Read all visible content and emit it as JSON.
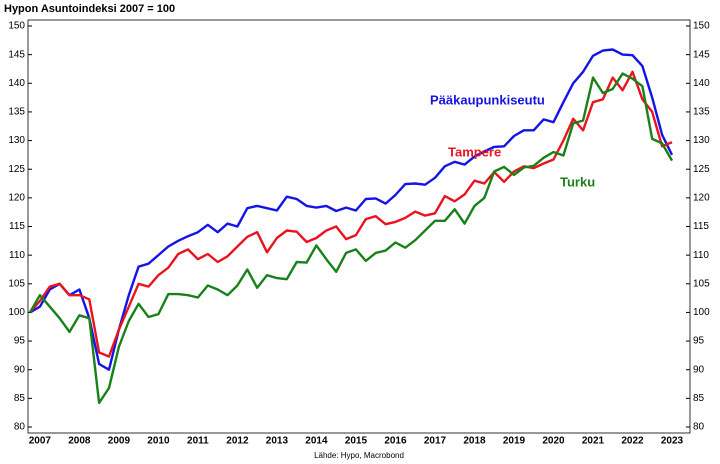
{
  "chart_data": {
    "type": "line",
    "title": "Hypon Asuntoindeksi 2007 = 100",
    "source": "Lähde: Hypo, Macrobond",
    "categories": [
      null,
      "2007",
      null,
      null,
      null,
      "2008",
      null,
      null,
      null,
      "2009",
      null,
      null,
      null,
      "2010",
      null,
      null,
      null,
      "2011",
      null,
      null,
      null,
      "2012",
      null,
      null,
      null,
      "2013",
      null,
      null,
      null,
      "2014",
      null,
      null,
      null,
      "2015",
      null,
      null,
      null,
      "2016",
      null,
      null,
      null,
      "2017",
      null,
      null,
      null,
      "2018",
      null,
      null,
      null,
      "2019",
      null,
      null,
      null,
      "2020",
      null,
      null,
      null,
      "2021",
      null,
      null,
      null,
      "2022",
      null,
      null,
      null,
      "2023"
    ],
    "series": [
      {
        "name": "Pääkaupunkiseutu",
        "color": "#1414e6",
        "values": [
          100,
          101,
          104,
          105,
          103,
          104,
          99,
          91,
          90,
          97,
          103,
          108,
          108.5,
          110,
          111.5,
          112.5,
          113.3,
          114,
          115.3,
          114,
          115.5,
          115,
          118.2,
          118.6,
          118.2,
          117.8,
          120.2,
          119.8,
          118.6,
          118.3,
          118.6,
          117.7,
          118.3,
          117.8,
          119.8,
          119.9,
          119,
          120.5,
          122.4,
          122.5,
          122.3,
          123.5,
          125.5,
          126.3,
          125.8,
          127.2,
          128.1,
          128.9,
          129,
          130.8,
          131.8,
          131.8,
          133.7,
          133.2,
          136.7,
          140,
          142,
          144.8,
          145.7,
          145.9,
          145,
          144.9,
          143,
          137.5,
          131,
          127.5
        ]
      },
      {
        "name": "Tampere",
        "color": "#e8141e",
        "values": [
          100,
          102,
          104.5,
          105,
          103,
          103,
          102.3,
          93,
          92.3,
          97,
          101,
          105,
          104.5,
          106.5,
          107.8,
          110.2,
          111,
          109.3,
          110.2,
          108.8,
          109.8,
          111.5,
          113.2,
          114,
          110.5,
          113,
          114.3,
          114.1,
          112.3,
          113,
          114.3,
          115,
          112.8,
          113.5,
          116.3,
          116.8,
          115.4,
          115.8,
          116.5,
          117.6,
          116.9,
          117.3,
          120.3,
          119.4,
          120.6,
          123,
          122.5,
          124.5,
          122.8,
          124.6,
          125.5,
          125.2,
          126,
          126.7,
          130,
          133.8,
          131.8,
          136.7,
          137.2,
          141,
          138.8,
          142,
          137.2,
          135,
          129,
          129.7
        ]
      },
      {
        "name": "Turku",
        "color": "#1a8019",
        "values": [
          100,
          103,
          101,
          99,
          96.6,
          99.5,
          99,
          84.2,
          86.8,
          94,
          98.5,
          101.5,
          99.2,
          99.7,
          103.2,
          103.2,
          103,
          102.6,
          104.7,
          104,
          103,
          104.7,
          107.5,
          104.3,
          106.5,
          106,
          105.8,
          108.8,
          108.7,
          111.7,
          109.3,
          107.1,
          110.4,
          111,
          109,
          110.4,
          110.8,
          112.2,
          111.3,
          112.6,
          114.3,
          116,
          116,
          118,
          115.5,
          118.6,
          120,
          124.6,
          125.4,
          124,
          125.3,
          125.6,
          127,
          128,
          127.4,
          133,
          133.5,
          141,
          138.3,
          139,
          141.7,
          140.8,
          139.5,
          130.3,
          129.5,
          126.5
        ]
      }
    ],
    "ylim": [
      80,
      150
    ],
    "yticks": [
      80,
      85,
      90,
      95,
      100,
      105,
      110,
      115,
      120,
      125,
      130,
      135,
      140,
      145,
      150
    ]
  }
}
